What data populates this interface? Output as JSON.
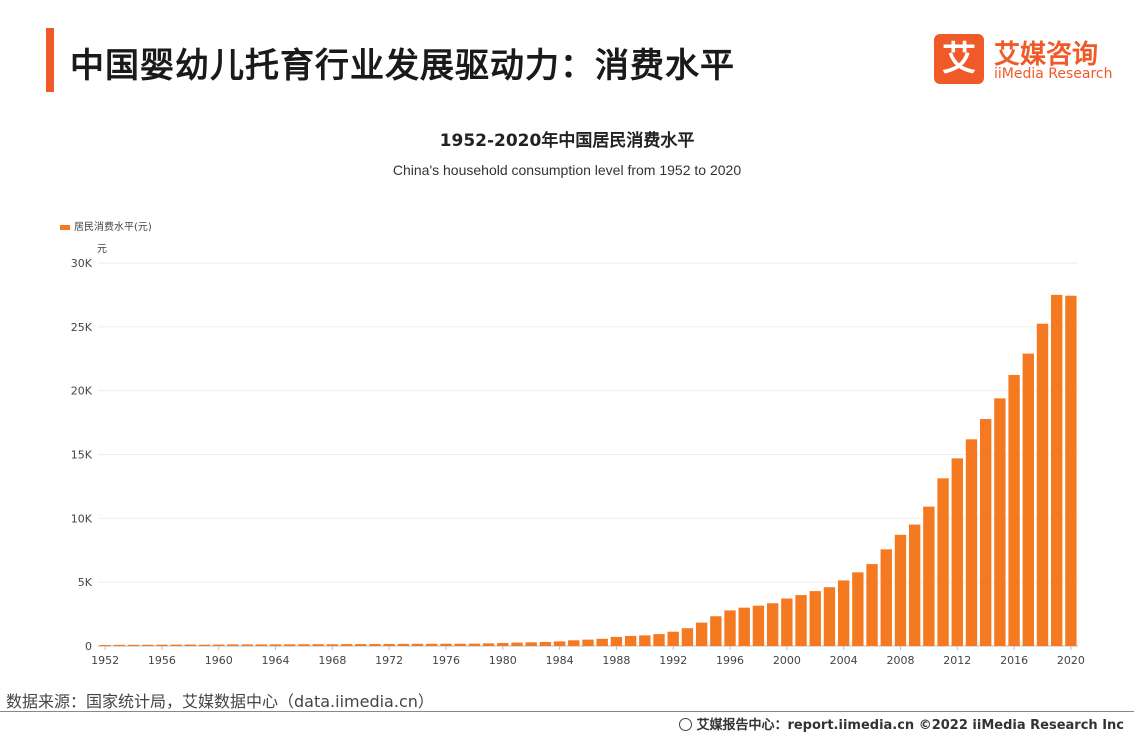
{
  "header": {
    "title": "中国婴幼儿托育行业发展驱动力：消费水平",
    "accent_color": "#f05a28"
  },
  "logo": {
    "box_char": "艾",
    "name_cn": "艾媒咨询",
    "name_en": "iiMedia Research",
    "color": "#f05a28"
  },
  "source": "数据来源：国家统计局，艾媒数据中心（data.iimedia.cn）",
  "footer": {
    "text": "艾媒报告中心：report.iimedia.cn  ©2022  iiMedia Research  Inc",
    "icon": "globe-icon"
  },
  "chart_data": {
    "type": "bar",
    "title": "1952-2020年中国居民消费水平",
    "subtitle": "China's household consumption level from 1952 to 2020",
    "legend": "居民消费水平(元)",
    "y_unit": "元",
    "bar_color": "#f47920",
    "ylim": [
      0,
      30000
    ],
    "yticks": [
      0,
      5000,
      10000,
      15000,
      20000,
      25000,
      30000
    ],
    "ytick_labels": [
      "0",
      "5K",
      "10K",
      "15K",
      "20K",
      "25K",
      "30K"
    ],
    "xtick_labels": [
      "1952",
      "1956",
      "1960",
      "1964",
      "1968",
      "1972",
      "1976",
      "1980",
      "1984",
      "1988",
      "1992",
      "1996",
      "2000",
      "2004",
      "2008",
      "2012",
      "2016",
      "2020"
    ],
    "categories": [
      "1952",
      "1953",
      "1954",
      "1955",
      "1956",
      "1957",
      "1958",
      "1959",
      "1960",
      "1961",
      "1962",
      "1963",
      "1964",
      "1965",
      "1966",
      "1967",
      "1968",
      "1969",
      "1970",
      "1971",
      "1972",
      "1973",
      "1974",
      "1975",
      "1976",
      "1977",
      "1978",
      "1979",
      "1980",
      "1981",
      "1982",
      "1983",
      "1984",
      "1985",
      "1986",
      "1987",
      "1988",
      "1989",
      "1990",
      "1991",
      "1992",
      "1993",
      "1994",
      "1995",
      "1996",
      "1997",
      "1998",
      "1999",
      "2000",
      "2001",
      "2002",
      "2003",
      "2004",
      "2005",
      "2006",
      "2007",
      "2008",
      "2009",
      "2010",
      "2011",
      "2012",
      "2013",
      "2014",
      "2015",
      "2016",
      "2017",
      "2018",
      "2019",
      "2020"
    ],
    "values": [
      80,
      91,
      94,
      99,
      104,
      108,
      111,
      104,
      111,
      125,
      124,
      124,
      129,
      133,
      139,
      143,
      139,
      147,
      150,
      155,
      160,
      168,
      171,
      175,
      178,
      179,
      184,
      208,
      238,
      264,
      288,
      316,
      361,
      446,
      497,
      565,
      714,
      788,
      833,
      932,
      1116,
      1393,
      1833,
      2330,
      2789,
      3002,
      3159,
      3346,
      3721,
      3987,
      4301,
      4606,
      5138,
      5771,
      6416,
      7572,
      8707,
      9514,
      10919,
      13134,
      14699,
      16190,
      17778,
      19397,
      21228,
      22902,
      25245,
      27504,
      27438
    ],
    "grid": true
  }
}
